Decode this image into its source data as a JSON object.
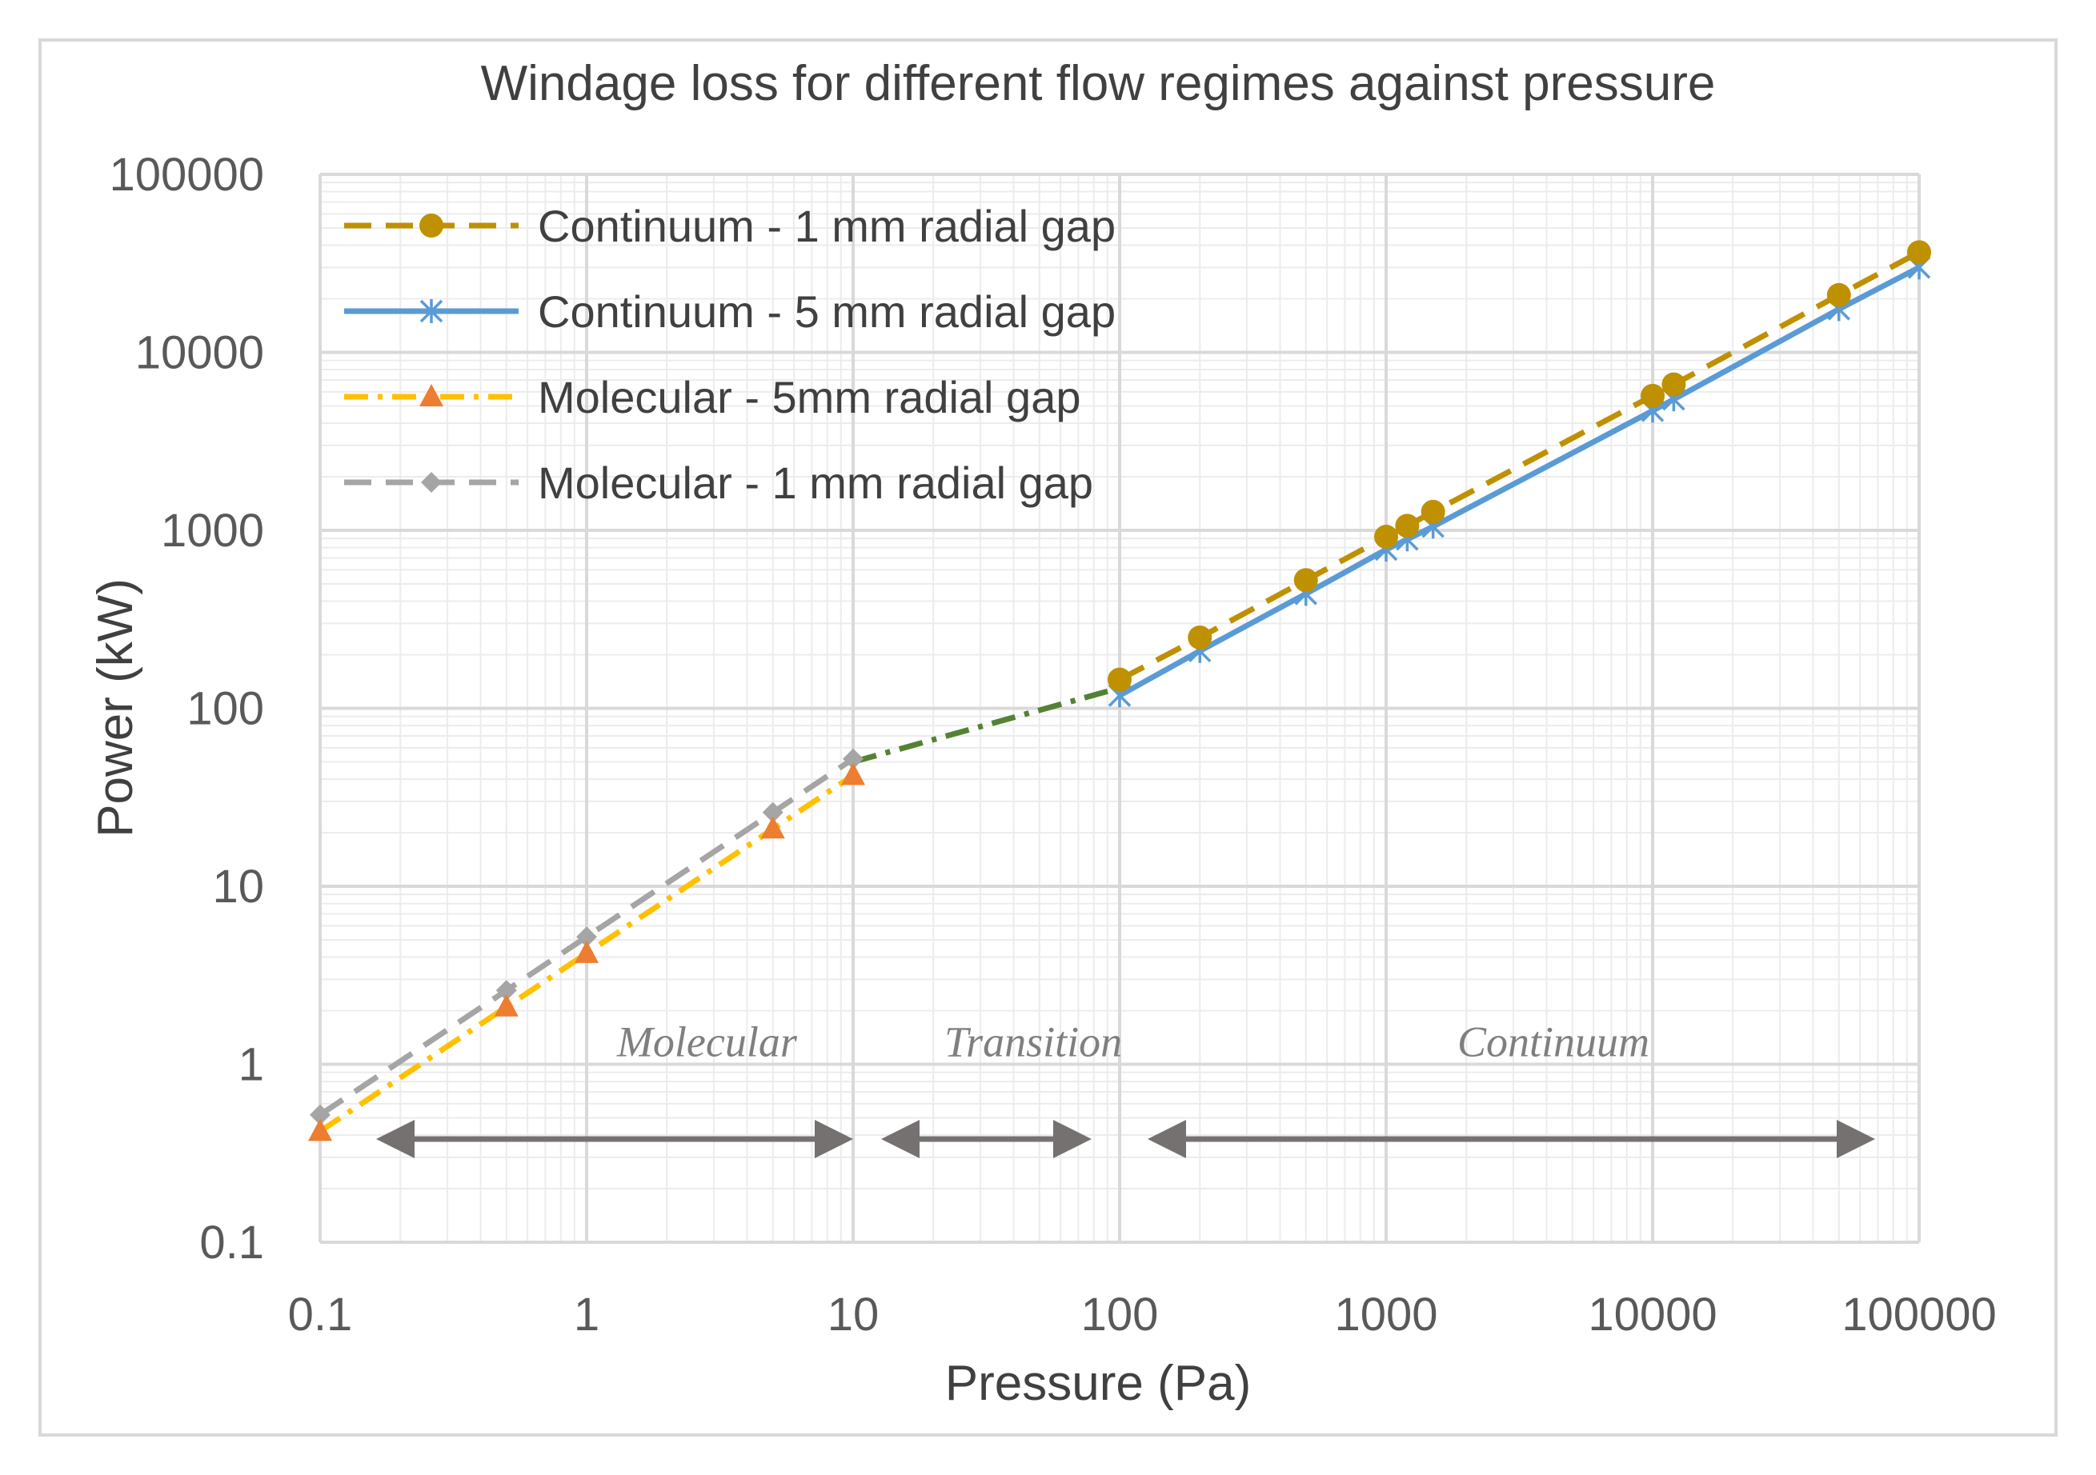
{
  "chart_data": {
    "type": "line",
    "title": "Windage loss for different flow regimes against pressure",
    "xlabel": "Pressure (Pa)",
    "ylabel": "Power (kW)",
    "xscale": "log",
    "yscale": "log",
    "xlim": [
      0.1,
      100000
    ],
    "ylim": [
      0.1,
      100000
    ],
    "x_tick_labels": [
      "0.1",
      "1",
      "10",
      "100",
      "1000",
      "10000",
      "100000"
    ],
    "y_tick_labels": [
      "0.1",
      "1",
      "10",
      "100",
      "1000",
      "10000",
      "100000"
    ],
    "grid": "major and minor",
    "legend_position": "top-left",
    "series": [
      {
        "name": "Continuum - 1 mm radial gap",
        "color": "#bf9000",
        "line": "dashed",
        "marker": "circle",
        "x": [
          100,
          200,
          500,
          1000,
          1200,
          1500,
          10000,
          12000,
          50000,
          100000
        ],
        "y": [
          145,
          250,
          525,
          920,
          1060,
          1270,
          5700,
          6600,
          21000,
          36500
        ]
      },
      {
        "name": "Continuum - 5 mm radial gap",
        "color": "#5b9bd5",
        "line": "solid",
        "marker": "asterisk",
        "x": [
          100,
          200,
          500,
          1000,
          1200,
          1500,
          10000,
          12000,
          50000,
          100000
        ],
        "y": [
          118,
          210,
          440,
          780,
          890,
          1050,
          4700,
          5450,
          17500,
          30000
        ]
      },
      {
        "name": "Molecular - 5mm radial gap",
        "color": "#ffc000",
        "marker_color": "#ed7d31",
        "line": "dash-dot",
        "marker": "triangle",
        "x": [
          0.1,
          0.5,
          1,
          5,
          10
        ],
        "y": [
          0.42,
          2.1,
          4.2,
          21,
          42
        ]
      },
      {
        "name": "Molecular - 1 mm radial gap",
        "color": "#a5a5a5",
        "line": "dashed",
        "marker": "diamond",
        "x": [
          0.1,
          0.5,
          1,
          5,
          10
        ],
        "y": [
          0.52,
          2.6,
          5.2,
          26,
          52
        ]
      }
    ],
    "transition_line": {
      "color": "#548235",
      "line": "dash-dot",
      "x": [
        10,
        100
      ],
      "y": [
        50,
        130
      ]
    },
    "regions": [
      {
        "label": "Molecular",
        "x_from": 0.1,
        "x_to": 10,
        "label_x": 1.3
      },
      {
        "label": "Transition",
        "x_from": 10,
        "x_to": 100,
        "label_x": 22
      },
      {
        "label": "Continuum",
        "x_from": 100,
        "x_to": 100000,
        "label_x": 1850
      }
    ],
    "region_arrow_y": 0.38,
    "region_label_y": 1.0,
    "arrow_color": "#767171"
  }
}
